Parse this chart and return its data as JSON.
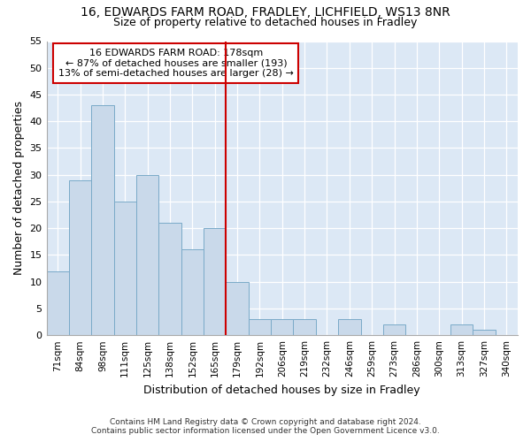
{
  "title1": "16, EDWARDS FARM ROAD, FRADLEY, LICHFIELD, WS13 8NR",
  "title2": "Size of property relative to detached houses in Fradley",
  "xlabel": "Distribution of detached houses by size in Fradley",
  "ylabel": "Number of detached properties",
  "bar_labels": [
    "71sqm",
    "84sqm",
    "98sqm",
    "111sqm",
    "125sqm",
    "138sqm",
    "152sqm",
    "165sqm",
    "179sqm",
    "192sqm",
    "206sqm",
    "219sqm",
    "232sqm",
    "246sqm",
    "259sqm",
    "273sqm",
    "286sqm",
    "300sqm",
    "313sqm",
    "327sqm",
    "340sqm"
  ],
  "bar_heights": [
    12,
    29,
    43,
    25,
    30,
    21,
    16,
    20,
    10,
    3,
    3,
    3,
    0,
    3,
    0,
    2,
    0,
    0,
    2,
    1,
    0
  ],
  "bar_color": "#c9d9ea",
  "bar_edge_color": "#7aaac8",
  "highlight_bar_idx": 8,
  "highlight_color": "#cc0000",
  "annotation_title": "16 EDWARDS FARM ROAD: 178sqm",
  "annotation_line1": "← 87% of detached houses are smaller (193)",
  "annotation_line2": "13% of semi-detached houses are larger (28) →",
  "ylim": [
    0,
    55
  ],
  "yticks": [
    0,
    5,
    10,
    15,
    20,
    25,
    30,
    35,
    40,
    45,
    50,
    55
  ],
  "footnote1": "Contains HM Land Registry data © Crown copyright and database right 2024.",
  "footnote2": "Contains public sector information licensed under the Open Government Licence v3.0.",
  "bg_color": "#ffffff",
  "plot_bg_color": "#dce8f5"
}
